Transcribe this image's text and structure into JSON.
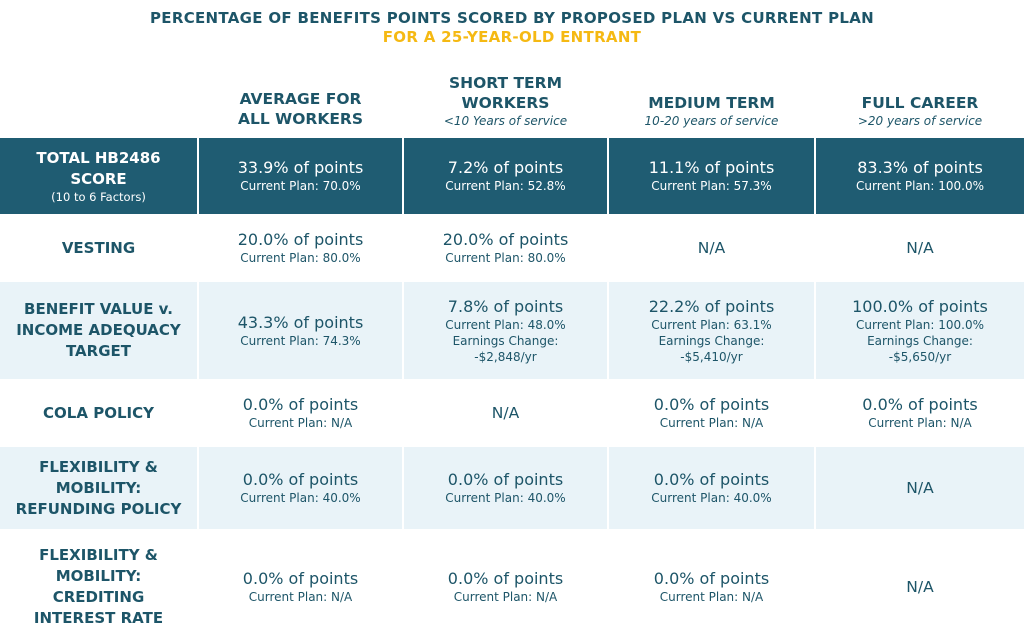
{
  "title": {
    "line1": "PERCENTAGE OF BENEFITS POINTS SCORED BY PROPOSED PLAN VS CURRENT PLAN",
    "line2": "FOR A 25-YEAR-OLD ENTRANT"
  },
  "columns": [
    {
      "line1": "AVERAGE FOR",
      "line2": "ALL WORKERS",
      "sub": ""
    },
    {
      "line1": "SHORT TERM",
      "line2": "WORKERS",
      "sub": "<10 Years of service"
    },
    {
      "line1": "MEDIUM TERM",
      "line2": "",
      "sub": "10-20 years of service"
    },
    {
      "line1": "FULL CAREER",
      "line2": "",
      "sub": ">20 years of service"
    }
  ],
  "rows": [
    {
      "label": [
        "TOTAL HB2486",
        "SCORE"
      ],
      "label_sub": "(10 to 6 Factors)",
      "cells": [
        {
          "points": "33.9% of points",
          "lines": [
            "Current Plan: 70.0%"
          ]
        },
        {
          "points": "7.2% of points",
          "lines": [
            "Current Plan: 52.8%"
          ]
        },
        {
          "points": "11.1% of points",
          "lines": [
            "Current Plan: 57.3%"
          ]
        },
        {
          "points": "83.3% of points",
          "lines": [
            "Current Plan: 100.0%"
          ]
        }
      ]
    },
    {
      "label": [
        "VESTING"
      ],
      "cells": [
        {
          "points": "20.0% of points",
          "lines": [
            "Current Plan: 80.0%"
          ]
        },
        {
          "points": "20.0% of points",
          "lines": [
            "Current Plan: 80.0%"
          ]
        },
        {
          "na": "N/A"
        },
        {
          "na": "N/A"
        }
      ]
    },
    {
      "label": [
        "BENEFIT VALUE v.",
        "INCOME ADEQUACY",
        "TARGET"
      ],
      "cells": [
        {
          "points": "43.3% of points",
          "lines": [
            "Current Plan: 74.3%"
          ]
        },
        {
          "points": "7.8% of points",
          "lines": [
            "Current Plan: 48.0%",
            "Earnings Change:",
            "-$2,848/yr"
          ]
        },
        {
          "points": "22.2% of points",
          "lines": [
            "Current Plan: 63.1%",
            "Earnings Change:",
            "-$5,410/yr"
          ]
        },
        {
          "points": "100.0% of points",
          "lines": [
            "Current Plan: 100.0%",
            "Earnings Change:",
            "-$5,650/yr"
          ]
        }
      ]
    },
    {
      "label": [
        "COLA POLICY"
      ],
      "cells": [
        {
          "points": "0.0% of points",
          "lines": [
            "Current Plan: N/A"
          ]
        },
        {
          "na": "N/A"
        },
        {
          "points": "0.0% of points",
          "lines": [
            "Current Plan: N/A"
          ]
        },
        {
          "points": "0.0% of points",
          "lines": [
            "Current Plan: N/A"
          ]
        }
      ]
    },
    {
      "label": [
        "FLEXIBILITY &",
        "MOBILITY:",
        "REFUNDING POLICY"
      ],
      "cells": [
        {
          "points": "0.0% of points",
          "lines": [
            "Current Plan: 40.0%"
          ]
        },
        {
          "points": "0.0% of points",
          "lines": [
            "Current Plan: 40.0%"
          ]
        },
        {
          "points": "0.0% of points",
          "lines": [
            "Current Plan: 40.0%"
          ]
        },
        {
          "na": "N/A"
        }
      ]
    },
    {
      "label": [
        "FLEXIBILITY &",
        "MOBILITY:",
        "CREDITING",
        "INTEREST RATE"
      ],
      "cells": [
        {
          "points": "0.0% of points",
          "lines": [
            "Current Plan: N/A"
          ]
        },
        {
          "points": "0.0% of points",
          "lines": [
            "Current Plan: N/A"
          ]
        },
        {
          "points": "0.0% of points",
          "lines": [
            "Current Plan: N/A"
          ]
        },
        {
          "na": "N/A"
        }
      ]
    }
  ],
  "colors": {
    "dark": "#1f5c72",
    "shaded": "#e9f3f8",
    "text": "#1d5568",
    "accent": "#f5b913"
  }
}
